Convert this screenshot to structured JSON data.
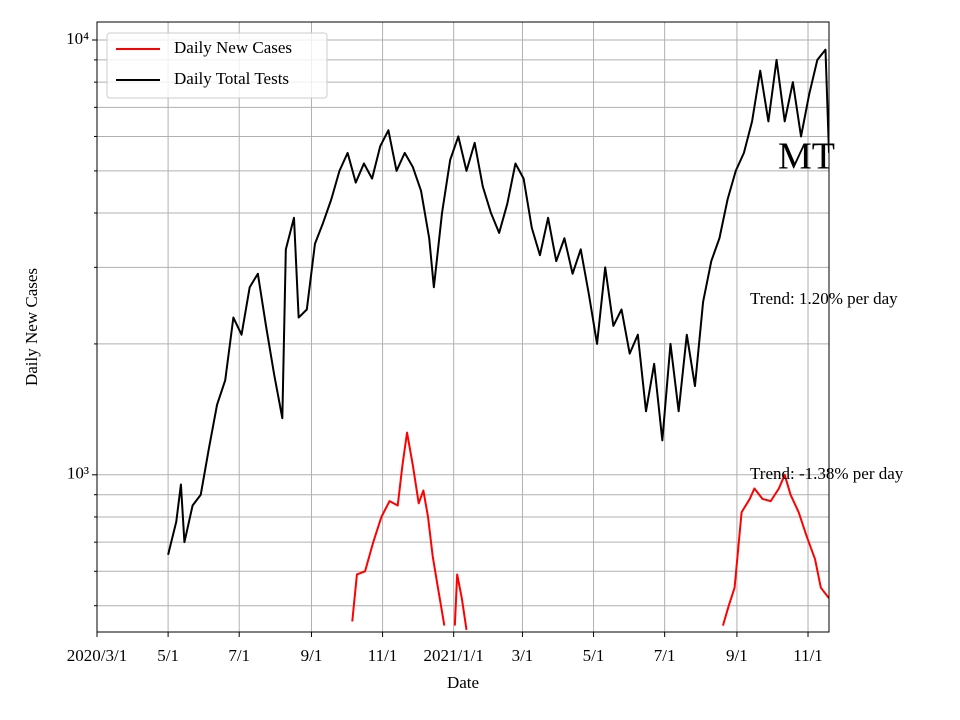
{
  "chart_data": {
    "type": "line",
    "x_label": "Date",
    "y_label": "Daily New Cases",
    "log_scale": true,
    "grid": true,
    "legend": "upper left",
    "xlim": [
      "2020-03-01",
      "2021-11-19"
    ],
    "xticks": [
      {
        "value": "2020-03-01",
        "label": "2020/3/1"
      },
      {
        "value": "2020-05-01",
        "label": "5/1"
      },
      {
        "value": "2020-07-01",
        "label": "7/1"
      },
      {
        "value": "2020-09-01",
        "label": "9/1"
      },
      {
        "value": "2020-11-01",
        "label": "11/1"
      },
      {
        "value": "2021-01-01",
        "label": "2021/1/1"
      },
      {
        "value": "2021-03-01",
        "label": "3/1"
      },
      {
        "value": "2021-05-01",
        "label": "5/1"
      },
      {
        "value": "2021-07-01",
        "label": "7/1"
      },
      {
        "value": "2021-09-01",
        "label": "9/1"
      },
      {
        "value": "2021-11-01",
        "label": "11/1"
      }
    ],
    "ylim": [
      435,
      11000
    ],
    "yticks": [
      {
        "value": 1000,
        "label": "10³"
      },
      {
        "value": 10000,
        "label": "10⁴"
      }
    ],
    "yminorticks": [
      500,
      600,
      700,
      800,
      900,
      2000,
      3000,
      4000,
      5000,
      6000,
      7000,
      8000,
      9000
    ],
    "annotations": [
      "MT",
      "Trend: 1.20% per day",
      "Trend: -1.38% per day"
    ],
    "series": [
      {
        "name": "Daily New Cases",
        "color": "#ff0000",
        "x": [
          "2020-10-06",
          "2020-10-10",
          "2020-10-17",
          "2020-10-24",
          "2020-10-31",
          "2020-11-07",
          "2020-11-14",
          "2020-11-18",
          "2020-11-22",
          "2020-11-27",
          "2020-12-02",
          "2020-12-06",
          "2020-12-10",
          "2020-12-14",
          "2020-12-18",
          "2020-12-24",
          "2020-12-28",
          "2021-01-02",
          "2021-01-04",
          "2021-01-08",
          "2021-01-12",
          "2021-08-15",
          "2021-08-20",
          "2021-08-25",
          "2021-08-30",
          "2021-09-05",
          "2021-09-12",
          "2021-09-16",
          "2021-09-23",
          "2021-09-30",
          "2021-10-07",
          "2021-10-12",
          "2021-10-17",
          "2021-10-24",
          "2021-10-31",
          "2021-11-07",
          "2021-11-12",
          "2021-11-19"
        ],
        "values": [
          460,
          590,
          600,
          700,
          800,
          870,
          850,
          1050,
          1250,
          1050,
          860,
          920,
          800,
          650,
          560,
          450,
          null,
          450,
          590,
          520,
          440,
          null,
          450,
          500,
          550,
          820,
          880,
          930,
          880,
          870,
          930,
          1000,
          900,
          820,
          720,
          640,
          550,
          520
        ]
      },
      {
        "name": "Daily Total Tests",
        "color": "#000000",
        "x": [
          "2020-05-01",
          "2020-05-08",
          "2020-05-12",
          "2020-05-15",
          "2020-05-22",
          "2020-05-29",
          "2020-06-05",
          "2020-06-12",
          "2020-06-19",
          "2020-06-26",
          "2020-07-03",
          "2020-07-10",
          "2020-07-17",
          "2020-07-24",
          "2020-07-31",
          "2020-08-07",
          "2020-08-10",
          "2020-08-17",
          "2020-08-21",
          "2020-08-28",
          "2020-09-04",
          "2020-09-11",
          "2020-09-18",
          "2020-09-25",
          "2020-10-02",
          "2020-10-09",
          "2020-10-16",
          "2020-10-23",
          "2020-10-30",
          "2020-11-06",
          "2020-11-13",
          "2020-11-20",
          "2020-11-27",
          "2020-12-04",
          "2020-12-11",
          "2020-12-15",
          "2020-12-22",
          "2020-12-29",
          "2021-01-05",
          "2021-01-12",
          "2021-01-19",
          "2021-01-26",
          "2021-02-02",
          "2021-02-09",
          "2021-02-16",
          "2021-02-23",
          "2021-03-02",
          "2021-03-09",
          "2021-03-16",
          "2021-03-23",
          "2021-03-30",
          "2021-04-06",
          "2021-04-13",
          "2021-04-20",
          "2021-04-27",
          "2021-05-04",
          "2021-05-11",
          "2021-05-18",
          "2021-05-25",
          "2021-06-01",
          "2021-06-08",
          "2021-06-15",
          "2021-06-22",
          "2021-06-29",
          "2021-07-06",
          "2021-07-13",
          "2021-07-20",
          "2021-07-27",
          "2021-08-03",
          "2021-08-10",
          "2021-08-17",
          "2021-08-24",
          "2021-08-31",
          "2021-09-07",
          "2021-09-14",
          "2021-09-21",
          "2021-09-28",
          "2021-10-05",
          "2021-10-12",
          "2021-10-19",
          "2021-10-26",
          "2021-11-02",
          "2021-11-09",
          "2021-11-16",
          "2021-11-19"
        ],
        "values": [
          655,
          780,
          950,
          700,
          850,
          900,
          1150,
          1450,
          1650,
          2300,
          2100,
          2700,
          2900,
          2200,
          1700,
          1350,
          3300,
          3900,
          2300,
          2400,
          3400,
          3800,
          4300,
          5000,
          5500,
          4700,
          5200,
          4800,
          5700,
          6200,
          5000,
          5500,
          5100,
          4500,
          3500,
          2700,
          4000,
          5300,
          6000,
          5000,
          5800,
          4600,
          4000,
          3600,
          4200,
          5200,
          4800,
          3700,
          3200,
          3900,
          3100,
          3500,
          2900,
          3300,
          2600,
          2000,
          3000,
          2200,
          2400,
          1900,
          2100,
          1400,
          1800,
          1200,
          2000,
          1400,
          2100,
          1600,
          2500,
          3100,
          3500,
          4300,
          5000,
          5500,
          6500,
          8500,
          6500,
          9000,
          6500,
          8000,
          6000,
          7500,
          9000,
          9500,
          5500
        ]
      }
    ]
  }
}
